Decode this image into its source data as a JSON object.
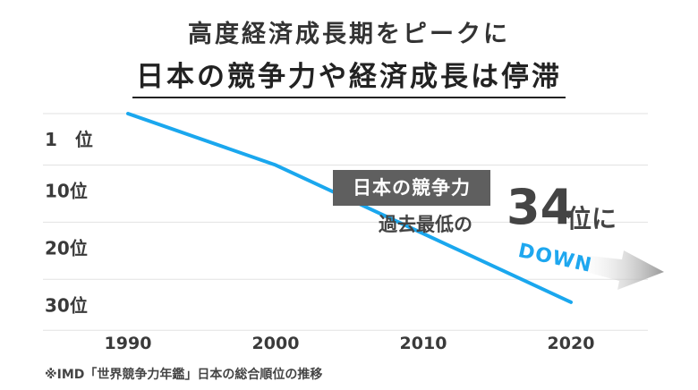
{
  "header": {
    "title_line1": "高度経済成長期をピークに",
    "title_line2": "日本の競争力や経済成長は停滞"
  },
  "chart_data": {
    "type": "line",
    "x": [
      1990,
      2000,
      2020
    ],
    "y": [
      1,
      10,
      34
    ],
    "xticks": [
      "1990",
      "2000",
      "2010",
      "2020"
    ],
    "yticks": [
      {
        "value": 1,
        "label": "1　位"
      },
      {
        "value": 10,
        "label": "10位"
      },
      {
        "value": 20,
        "label": "20位"
      },
      {
        "value": 30,
        "label": "30位"
      }
    ],
    "y_inverted": true,
    "grid": true,
    "line_color": "#1aa7ee"
  },
  "annotation": {
    "badge": "日本の競争力",
    "text": "過去最低の",
    "number": "34",
    "suffix": "位に",
    "down": "DOWN"
  },
  "footnote": "※IMD「世界競争力年鑑」日本の総合順位の推移"
}
